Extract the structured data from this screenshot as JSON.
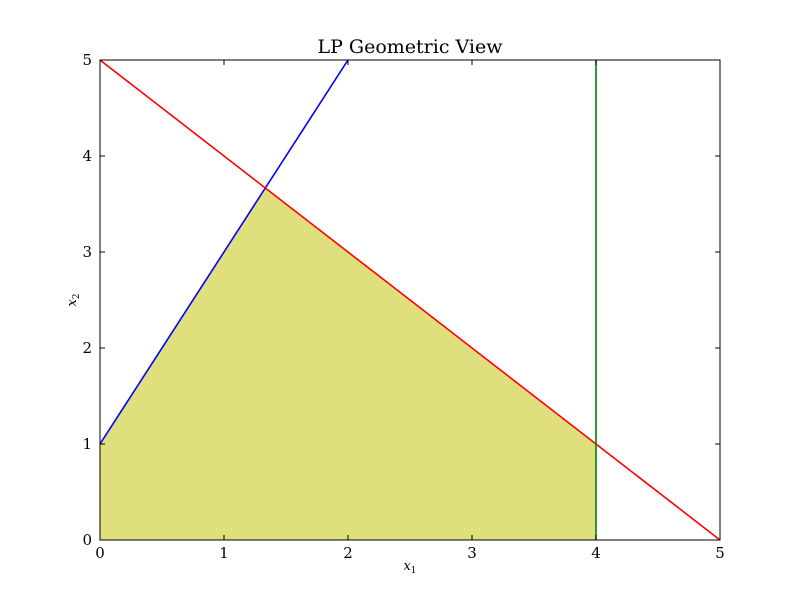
{
  "chart_data": {
    "type": "area",
    "title": "LP Geometric View",
    "xlabel": {
      "base": "x",
      "sub": "1"
    },
    "ylabel": {
      "base": "x",
      "sub": "2"
    },
    "xlim": [
      0,
      5
    ],
    "ylim": [
      0,
      5
    ],
    "xticks": [
      0,
      1,
      2,
      3,
      4,
      5
    ],
    "yticks": [
      0,
      1,
      2,
      3,
      4,
      5
    ],
    "xtick_labels": [
      "0",
      "1",
      "2",
      "3",
      "4",
      "5"
    ],
    "ytick_labels": [
      "0",
      "1",
      "2",
      "3",
      "4",
      "5"
    ],
    "grid": false,
    "series": [
      {
        "type": "line",
        "color": "#0000ff",
        "x": [
          0,
          2
        ],
        "y": [
          1,
          5
        ]
      },
      {
        "type": "line",
        "color": "#ff0000",
        "x": [
          0,
          5
        ],
        "y": [
          5,
          0
        ]
      },
      {
        "type": "line",
        "color": "#008000",
        "x": [
          4,
          4
        ],
        "y": [
          0,
          5
        ]
      }
    ],
    "feasible_region": {
      "color": "#dfdf7e",
      "x": [
        0,
        0,
        1.333,
        4,
        4
      ],
      "y": [
        0,
        1,
        3.667,
        1,
        0
      ]
    }
  }
}
